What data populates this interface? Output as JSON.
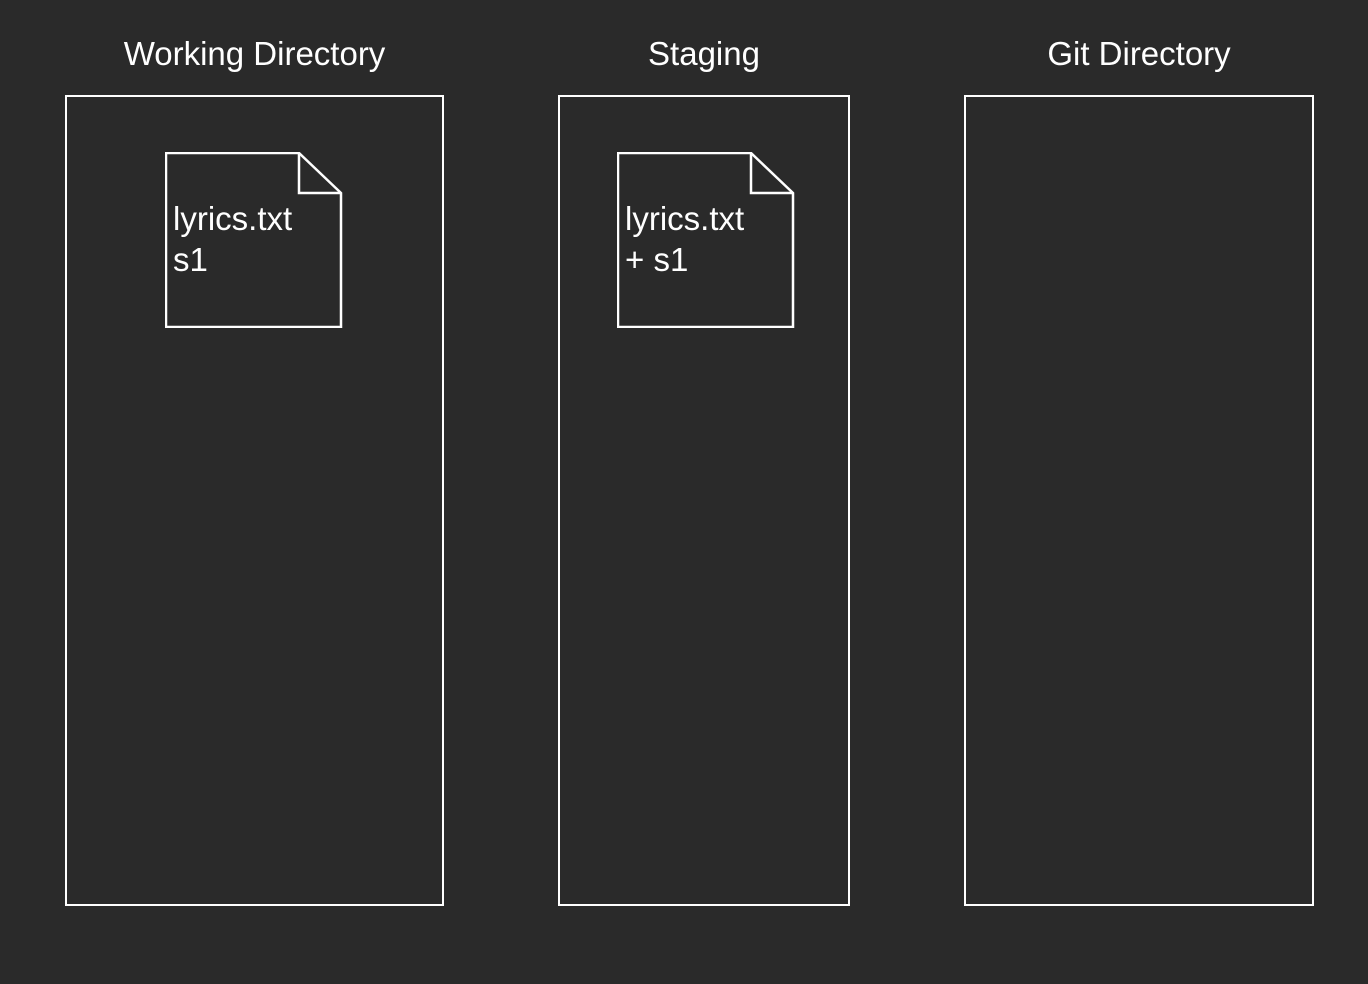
{
  "columns": [
    {
      "title": "Working Directory",
      "file": {
        "name": "lyrics.txt",
        "content": "s1"
      }
    },
    {
      "title": "Staging",
      "file": {
        "name": "lyrics.txt",
        "content": "+ s1"
      }
    },
    {
      "title": "Git Directory",
      "file": null
    }
  ],
  "colors": {
    "background": "#2a2a2a",
    "stroke": "#ffffff",
    "text": "#ffffff"
  }
}
